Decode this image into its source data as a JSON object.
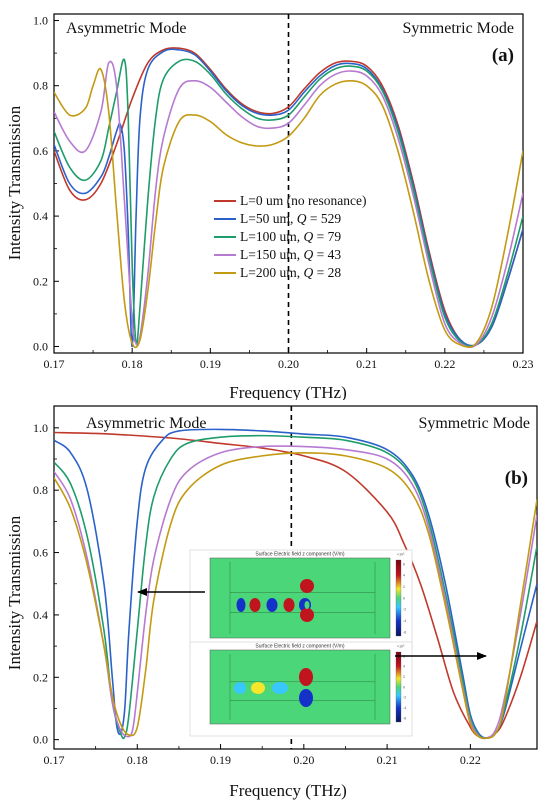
{
  "chart_data": [
    {
      "type": "line",
      "panel_label": "(a)",
      "title": "",
      "xlabel": "Frequency (THz)",
      "ylabel": "Intensity Transmission",
      "xlim": [
        0.17,
        0.23
      ],
      "ylim": [
        -0.02,
        1.02
      ],
      "xticks": [
        "0.17",
        "0.18",
        "0.19",
        "0.20",
        "0.21",
        "0.22",
        "0.23"
      ],
      "yticks": [
        "0.0",
        "0.2",
        "0.4",
        "0.6",
        "0.8",
        "1.0"
      ],
      "annotations": {
        "left": "Asymmetric Mode",
        "right": "Symmetric Mode"
      },
      "dashed_line_x": 0.2,
      "legend_position": "center",
      "series": [
        {
          "name": "L=0 um (no resonance)",
          "label_html": "L=0 um (no resonance)",
          "color": "#c0392b",
          "x": [
            0.17,
            0.172,
            0.174,
            0.176,
            0.178,
            0.18,
            0.182,
            0.184,
            0.186,
            0.188,
            0.19,
            0.192,
            0.194,
            0.196,
            0.198,
            0.2,
            0.202,
            0.204,
            0.206,
            0.208,
            0.21,
            0.212,
            0.214,
            0.216,
            0.218,
            0.22,
            0.222,
            0.224,
            0.226,
            0.228,
            0.23
          ],
          "y": [
            0.6,
            0.48,
            0.45,
            0.5,
            0.62,
            0.76,
            0.87,
            0.91,
            0.915,
            0.9,
            0.85,
            0.79,
            0.745,
            0.72,
            0.715,
            0.735,
            0.79,
            0.84,
            0.87,
            0.875,
            0.86,
            0.8,
            0.68,
            0.5,
            0.29,
            0.11,
            0.02,
            0.005,
            0.06,
            0.2,
            0.36
          ]
        },
        {
          "name": "L=50 um, Q = 529",
          "label_html": "L=50 um, <tspan font-style=\"italic\">Q</tspan> = 529",
          "color": "#2a62c9",
          "x": [
            0.17,
            0.172,
            0.174,
            0.176,
            0.177,
            0.178,
            0.1785,
            0.179,
            0.1795,
            0.18,
            0.1805,
            0.181,
            0.182,
            0.184,
            0.186,
            0.188,
            0.19,
            0.192,
            0.194,
            0.196,
            0.198,
            0.2,
            0.202,
            0.204,
            0.206,
            0.208,
            0.21,
            0.212,
            0.214,
            0.216,
            0.218,
            0.22,
            0.222,
            0.224,
            0.226,
            0.228,
            0.23
          ],
          "y": [
            0.62,
            0.5,
            0.47,
            0.52,
            0.58,
            0.66,
            0.68,
            0.6,
            0.35,
            0.0,
            0.4,
            0.7,
            0.85,
            0.905,
            0.91,
            0.895,
            0.845,
            0.785,
            0.74,
            0.715,
            0.71,
            0.725,
            0.78,
            0.83,
            0.862,
            0.868,
            0.852,
            0.79,
            0.67,
            0.49,
            0.28,
            0.1,
            0.02,
            0.005,
            0.06,
            0.2,
            0.36
          ]
        },
        {
          "name": "L=100 um, Q = 79",
          "label_html": "L=100 um, <tspan font-style=\"italic\">Q</tspan> = 79",
          "color": "#1e9c6a",
          "x": [
            0.17,
            0.172,
            0.174,
            0.176,
            0.177,
            0.178,
            0.179,
            0.1795,
            0.18,
            0.1805,
            0.181,
            0.182,
            0.183,
            0.184,
            0.186,
            0.188,
            0.19,
            0.192,
            0.194,
            0.196,
            0.198,
            0.2,
            0.202,
            0.204,
            0.206,
            0.208,
            0.21,
            0.212,
            0.214,
            0.216,
            0.218,
            0.22,
            0.222,
            0.224,
            0.226,
            0.228,
            0.23
          ],
          "y": [
            0.66,
            0.55,
            0.51,
            0.57,
            0.67,
            0.78,
            0.88,
            0.7,
            0.25,
            0.01,
            0.12,
            0.45,
            0.7,
            0.82,
            0.875,
            0.875,
            0.835,
            0.775,
            0.73,
            0.7,
            0.695,
            0.71,
            0.765,
            0.82,
            0.852,
            0.86,
            0.845,
            0.785,
            0.66,
            0.48,
            0.27,
            0.09,
            0.015,
            0.005,
            0.07,
            0.22,
            0.4
          ]
        },
        {
          "name": "L=150 um, Q = 43",
          "label_html": "L=150 um, <tspan font-style=\"italic\">Q</tspan> = 43",
          "color": "#b77ad1",
          "x": [
            0.17,
            0.172,
            0.174,
            0.176,
            0.177,
            0.178,
            0.179,
            0.18,
            0.1805,
            0.181,
            0.182,
            0.183,
            0.184,
            0.186,
            0.188,
            0.19,
            0.192,
            0.194,
            0.196,
            0.198,
            0.2,
            0.202,
            0.204,
            0.206,
            0.208,
            0.21,
            0.212,
            0.214,
            0.216,
            0.218,
            0.22,
            0.222,
            0.224,
            0.226,
            0.228,
            0.23
          ],
          "y": [
            0.72,
            0.63,
            0.6,
            0.72,
            0.87,
            0.8,
            0.45,
            0.08,
            0.01,
            0.03,
            0.22,
            0.48,
            0.64,
            0.79,
            0.815,
            0.795,
            0.75,
            0.705,
            0.675,
            0.67,
            0.685,
            0.74,
            0.8,
            0.835,
            0.845,
            0.83,
            0.77,
            0.64,
            0.46,
            0.25,
            0.07,
            0.01,
            0.005,
            0.09,
            0.26,
            0.47
          ]
        },
        {
          "name": "L=200 um, Q = 28",
          "label_html": "L=200 um, <tspan font-style=\"italic\">Q</tspan> = 28",
          "color": "#c39a12",
          "x": [
            0.17,
            0.172,
            0.174,
            0.175,
            0.176,
            0.177,
            0.178,
            0.179,
            0.18,
            0.181,
            0.182,
            0.183,
            0.184,
            0.186,
            0.188,
            0.19,
            0.192,
            0.194,
            0.196,
            0.198,
            0.2,
            0.202,
            0.204,
            0.206,
            0.208,
            0.21,
            0.212,
            0.214,
            0.216,
            0.218,
            0.22,
            0.222,
            0.224,
            0.226,
            0.228,
            0.23
          ],
          "y": [
            0.78,
            0.71,
            0.73,
            0.8,
            0.85,
            0.72,
            0.42,
            0.14,
            0.01,
            0.02,
            0.17,
            0.38,
            0.55,
            0.69,
            0.71,
            0.69,
            0.65,
            0.625,
            0.615,
            0.62,
            0.645,
            0.7,
            0.77,
            0.805,
            0.815,
            0.8,
            0.74,
            0.6,
            0.41,
            0.2,
            0.05,
            0.005,
            0.01,
            0.12,
            0.34,
            0.6
          ]
        }
      ]
    },
    {
      "type": "line",
      "panel_label": "(b)",
      "title": "",
      "xlabel": "Frequency (THz)",
      "ylabel": "Intensity Transmission",
      "xlim": [
        0.17,
        0.228
      ],
      "ylim": [
        -0.03,
        1.07
      ],
      "xticks": [
        "0.17",
        "0.18",
        "0.19",
        "0.20",
        "0.21",
        "0.22"
      ],
      "yticks": [
        "0.0",
        "0.2",
        "0.4",
        "0.6",
        "0.8",
        "1.0"
      ],
      "annotations": {
        "left": "Asymmetric Mode",
        "right": "Symmetric Mode"
      },
      "dashed_line_x": 0.1985,
      "series": [
        {
          "name": "L=0 um (no resonance)",
          "color": "#c0392b",
          "x": [
            0.17,
            0.175,
            0.18,
            0.185,
            0.19,
            0.195,
            0.2,
            0.205,
            0.21,
            0.212,
            0.214,
            0.216,
            0.218,
            0.22,
            0.221,
            0.222,
            0.223,
            0.224,
            0.226,
            0.228
          ],
          "y": [
            0.985,
            0.982,
            0.975,
            0.965,
            0.95,
            0.935,
            0.91,
            0.86,
            0.73,
            0.63,
            0.5,
            0.33,
            0.15,
            0.04,
            0.01,
            0.005,
            0.02,
            0.06,
            0.2,
            0.38
          ]
        },
        {
          "name": "L=50 um, Q = 529",
          "color": "#2a62c9",
          "x": [
            0.17,
            0.172,
            0.174,
            0.176,
            0.177,
            0.1775,
            0.178,
            0.1785,
            0.179,
            0.18,
            0.181,
            0.183,
            0.185,
            0.19,
            0.195,
            0.2,
            0.205,
            0.21,
            0.213,
            0.215,
            0.217,
            0.219,
            0.22,
            0.221,
            0.222,
            0.223,
            0.224,
            0.226,
            0.228
          ],
          "y": [
            0.96,
            0.92,
            0.8,
            0.5,
            0.2,
            0.05,
            0.02,
            0.1,
            0.35,
            0.7,
            0.87,
            0.96,
            0.99,
            0.995,
            0.99,
            0.98,
            0.97,
            0.93,
            0.85,
            0.72,
            0.5,
            0.22,
            0.08,
            0.02,
            0.005,
            0.02,
            0.08,
            0.29,
            0.5
          ]
        },
        {
          "name": "L=100 um, Q = 79",
          "color": "#1e9c6a",
          "x": [
            0.17,
            0.172,
            0.174,
            0.176,
            0.177,
            0.178,
            0.1785,
            0.179,
            0.18,
            0.181,
            0.182,
            0.184,
            0.186,
            0.19,
            0.195,
            0.2,
            0.205,
            0.21,
            0.213,
            0.215,
            0.217,
            0.219,
            0.22,
            0.221,
            0.222,
            0.223,
            0.224,
            0.226,
            0.228
          ],
          "y": [
            0.89,
            0.82,
            0.65,
            0.35,
            0.12,
            0.02,
            0.01,
            0.08,
            0.35,
            0.62,
            0.78,
            0.9,
            0.95,
            0.97,
            0.975,
            0.97,
            0.96,
            0.92,
            0.84,
            0.7,
            0.47,
            0.2,
            0.07,
            0.015,
            0.005,
            0.02,
            0.09,
            0.33,
            0.62
          ]
        },
        {
          "name": "L=150 um, Q = 43",
          "color": "#b77ad1",
          "x": [
            0.17,
            0.172,
            0.174,
            0.176,
            0.177,
            0.178,
            0.179,
            0.1795,
            0.18,
            0.181,
            0.182,
            0.184,
            0.186,
            0.19,
            0.195,
            0.2,
            0.205,
            0.21,
            0.213,
            0.215,
            0.217,
            0.219,
            0.22,
            0.221,
            0.222,
            0.223,
            0.224,
            0.226,
            0.228
          ],
          "y": [
            0.86,
            0.77,
            0.58,
            0.3,
            0.12,
            0.03,
            0.01,
            0.04,
            0.15,
            0.4,
            0.58,
            0.77,
            0.86,
            0.92,
            0.94,
            0.94,
            0.93,
            0.9,
            0.82,
            0.68,
            0.45,
            0.18,
            0.06,
            0.012,
            0.006,
            0.03,
            0.12,
            0.4,
            0.72
          ]
        },
        {
          "name": "L=200 um, Q = 28",
          "color": "#c39a12",
          "x": [
            0.17,
            0.172,
            0.174,
            0.176,
            0.177,
            0.178,
            0.179,
            0.18,
            0.181,
            0.182,
            0.184,
            0.186,
            0.19,
            0.195,
            0.2,
            0.205,
            0.21,
            0.213,
            0.215,
            0.217,
            0.219,
            0.22,
            0.221,
            0.222,
            0.223,
            0.224,
            0.226,
            0.228
          ],
          "y": [
            0.84,
            0.74,
            0.56,
            0.3,
            0.14,
            0.05,
            0.015,
            0.04,
            0.22,
            0.45,
            0.69,
            0.8,
            0.88,
            0.91,
            0.92,
            0.91,
            0.87,
            0.79,
            0.66,
            0.43,
            0.17,
            0.05,
            0.01,
            0.005,
            0.02,
            0.1,
            0.43,
            0.77
          ]
        }
      ]
    }
  ],
  "inset": {
    "top_title": "Surface Electric field z component (V/m)",
    "bottom_title": "Surface Electric field z component (V/m)",
    "colorbar_exponent": "×10⁵",
    "colorbar_ticks": [
      "6",
      "4",
      "2",
      "0",
      "-2",
      "-4",
      "-6"
    ],
    "colors": {
      "background": "#4cd67a",
      "positive": "#c0141e",
      "negative": "#1432c8",
      "warm": "#f5e62a",
      "cool": "#38c8ff"
    }
  }
}
